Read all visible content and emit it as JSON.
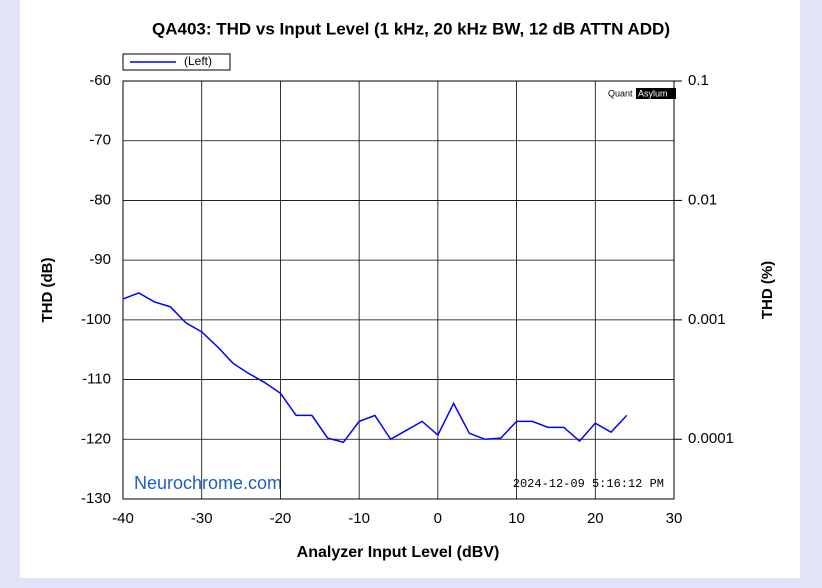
{
  "chart_data": {
    "type": "line",
    "title": "QA403: THD vs Input Level (1 kHz, 20 kHz BW, 12 dB ATTN ADD)",
    "xlabel": "Analyzer Input Level (dBV)",
    "ylabel": "THD (dB)",
    "y2label": "THD (%)",
    "annotations": {
      "logo_left": "Quant",
      "logo_right": "Asylum",
      "watermark": "Neurochrome.com",
      "timestamp": "2024-12-09 5:16:12 PM"
    },
    "x": [
      -40,
      -38,
      -36,
      -34,
      -32,
      -30,
      -28,
      -26,
      -24,
      -22,
      -20,
      -18,
      -16,
      -14,
      -12,
      -10,
      -8,
      -6,
      -4,
      -2,
      0,
      2,
      4,
      6,
      8,
      10,
      12,
      14,
      16,
      18,
      20,
      22,
      24
    ],
    "series": [
      {
        "name": "(Left)",
        "color": "#0000ff",
        "values": [
          -96.5,
          -95.5,
          -97,
          -97.8,
          -100.5,
          -102,
          -104.5,
          -107.3,
          -109,
          -110.5,
          -112.3,
          -116,
          -116,
          -119.8,
          -120.5,
          -117,
          -116,
          -120,
          -118.5,
          -117,
          -119.3,
          -114,
          -119,
          -120,
          -119.8,
          -117,
          -117,
          -118,
          -118,
          -120.3,
          -117.3,
          -118.8,
          -116
        ]
      }
    ],
    "xlim": [
      -40,
      30
    ],
    "xticks": [
      -40,
      -30,
      -20,
      -10,
      0,
      10,
      20,
      30
    ],
    "ylim": [
      -130,
      -60
    ],
    "yticks": [
      -130,
      -120,
      -110,
      -100,
      -90,
      -80,
      -70,
      -60
    ],
    "y2lim": [
      3.16e-05,
      0.1
    ],
    "y2ticks": [
      0.0001,
      0.001,
      0.01,
      0.1
    ],
    "y2scale": "log",
    "grid": true,
    "legend": "top-left"
  }
}
